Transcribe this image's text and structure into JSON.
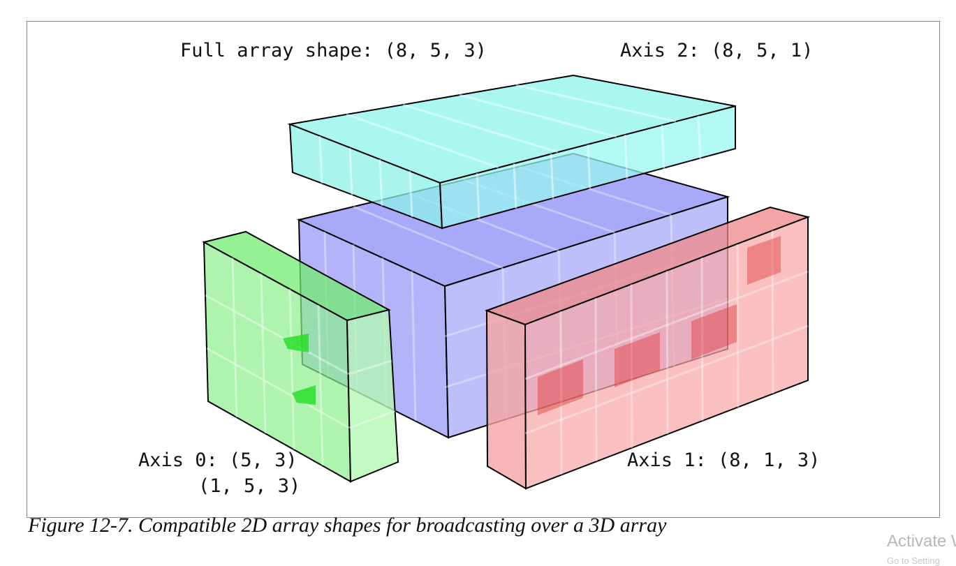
{
  "labels": {
    "full_array": "Full array shape: (8, 5, 3)",
    "axis2": "Axis 2: (8, 5, 1)",
    "axis0_line1": "Axis 0: (5, 3)",
    "axis0_line2": "(1, 5, 3)",
    "axis1": "Axis 1: (8, 1, 3)"
  },
  "caption": "Figure 12-7. Compatible 2D array shapes for broadcasting over a 3D array",
  "watermark": "Activate W",
  "watermark_sub": "Go to Setting",
  "colors": {
    "full_array": "#8080f8",
    "axis2": "#80f0e8",
    "axis0": "#80f080",
    "axis1": "#f8a0a0",
    "edge": "#000000"
  }
}
